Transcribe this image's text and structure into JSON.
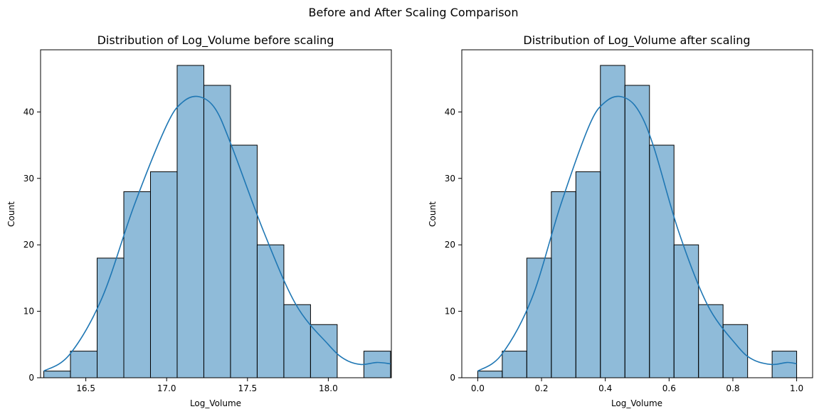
{
  "figure": {
    "suptitle": "Before and After Scaling Comparison"
  },
  "chart_data": [
    {
      "type": "bar",
      "title": "Distribution of Log_Volume before scaling",
      "xlabel": "Log_Volume",
      "ylabel": "Count",
      "xlim": [
        16.22,
        18.39
      ],
      "ylim": [
        0,
        49.35
      ],
      "xticks": [
        16.5,
        17.0,
        17.5,
        18.0
      ],
      "xtick_labels": [
        "16.5",
        "17.0",
        "17.5",
        "18.0"
      ],
      "yticks": [
        0,
        10,
        20,
        30,
        40
      ],
      "ytick_labels": [
        "0",
        "10",
        "20",
        "30",
        "40"
      ],
      "bin_edges": [
        16.24,
        16.405,
        16.57,
        16.735,
        16.9,
        17.065,
        17.23,
        17.395,
        17.56,
        17.725,
        17.89,
        18.055,
        18.22,
        18.385
      ],
      "values": [
        1,
        4,
        18,
        28,
        31,
        47,
        44,
        35,
        20,
        11,
        8,
        0,
        4
      ],
      "kde": {
        "x": [
          16.24,
          16.4,
          16.6,
          16.8,
          17.0,
          17.1,
          17.2,
          17.3,
          17.4,
          17.6,
          17.8,
          18.0,
          18.1,
          18.2,
          18.3,
          18.385
        ],
        "y": [
          1.0,
          3.5,
          12.0,
          26.0,
          38.0,
          41.5,
          42.3,
          40.5,
          35.0,
          22.0,
          11.0,
          5.0,
          2.8,
          2.0,
          2.3,
          2.1
        ]
      },
      "grid": false,
      "color": "#1f77b4"
    },
    {
      "type": "bar",
      "title": "Distribution of Log_Volume after scaling",
      "xlabel": "Log_Volume",
      "ylabel": "Count",
      "xlim": [
        -0.05,
        1.05
      ],
      "ylim": [
        0,
        49.35
      ],
      "xticks": [
        0.0,
        0.2,
        0.4,
        0.6,
        0.8,
        1.0
      ],
      "xtick_labels": [
        "0.0",
        "0.2",
        "0.4",
        "0.6",
        "0.8",
        "1.0"
      ],
      "yticks": [
        0,
        10,
        20,
        30,
        40
      ],
      "ytick_labels": [
        "0",
        "10",
        "20",
        "30",
        "40"
      ],
      "bin_edges": [
        0.0,
        0.0769,
        0.1538,
        0.2308,
        0.3077,
        0.3846,
        0.4615,
        0.5385,
        0.6154,
        0.6923,
        0.7692,
        0.8462,
        0.9231,
        1.0
      ],
      "values": [
        1,
        4,
        18,
        28,
        31,
        47,
        44,
        35,
        20,
        11,
        8,
        0,
        4
      ],
      "kde": {
        "x": [
          0.0,
          0.075,
          0.17,
          0.26,
          0.35,
          0.4,
          0.45,
          0.5,
          0.55,
          0.63,
          0.72,
          0.81,
          0.86,
          0.92,
          0.97,
          1.0
        ],
        "y": [
          1.0,
          3.5,
          12.0,
          26.0,
          38.0,
          41.5,
          42.3,
          40.5,
          35.0,
          22.0,
          11.0,
          5.0,
          2.8,
          2.0,
          2.3,
          2.1
        ]
      },
      "grid": false,
      "color": "#1f77b4"
    }
  ]
}
